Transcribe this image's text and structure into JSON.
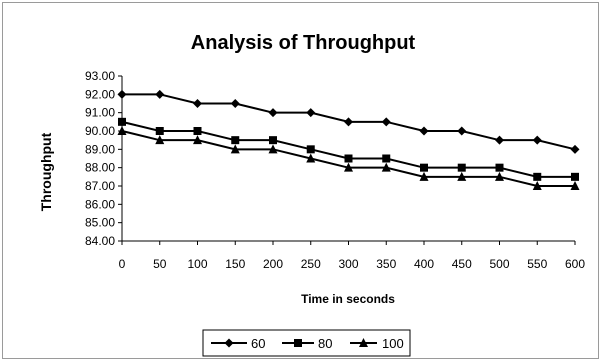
{
  "chart_data": {
    "type": "line",
    "title": "Analysis of Throughput",
    "xlabel": "Time in seconds",
    "ylabel": "Throughput",
    "x": [
      0,
      50,
      100,
      150,
      200,
      250,
      300,
      350,
      400,
      450,
      500,
      550,
      600
    ],
    "xlim": [
      0,
      600
    ],
    "ylim": [
      84.0,
      93.0
    ],
    "y_ticks": [
      "84.00",
      "85.00",
      "86.00",
      "87.00",
      "88.00",
      "89.00",
      "90.00",
      "91.00",
      "92.00",
      "93.00"
    ],
    "x_ticks": [
      "0",
      "50",
      "100",
      "150",
      "200",
      "250",
      "300",
      "350",
      "400",
      "450",
      "500",
      "550",
      "600"
    ],
    "grid": false,
    "legend_position": "bottom",
    "series": [
      {
        "name": "60",
        "marker": "diamond",
        "color": "#000000",
        "values": [
          92.0,
          92.0,
          91.5,
          91.5,
          91.0,
          91.0,
          90.5,
          90.5,
          90.0,
          90.0,
          89.5,
          89.5,
          89.0
        ]
      },
      {
        "name": "80",
        "marker": "square",
        "color": "#000000",
        "values": [
          90.5,
          90.0,
          90.0,
          89.5,
          89.5,
          89.0,
          88.5,
          88.5,
          88.0,
          88.0,
          88.0,
          87.5,
          87.5
        ]
      },
      {
        "name": "100",
        "marker": "triangle",
        "color": "#000000",
        "values": [
          90.0,
          89.5,
          89.5,
          89.0,
          89.0,
          88.5,
          88.0,
          88.0,
          87.5,
          87.5,
          87.5,
          87.0,
          87.0
        ]
      }
    ]
  }
}
